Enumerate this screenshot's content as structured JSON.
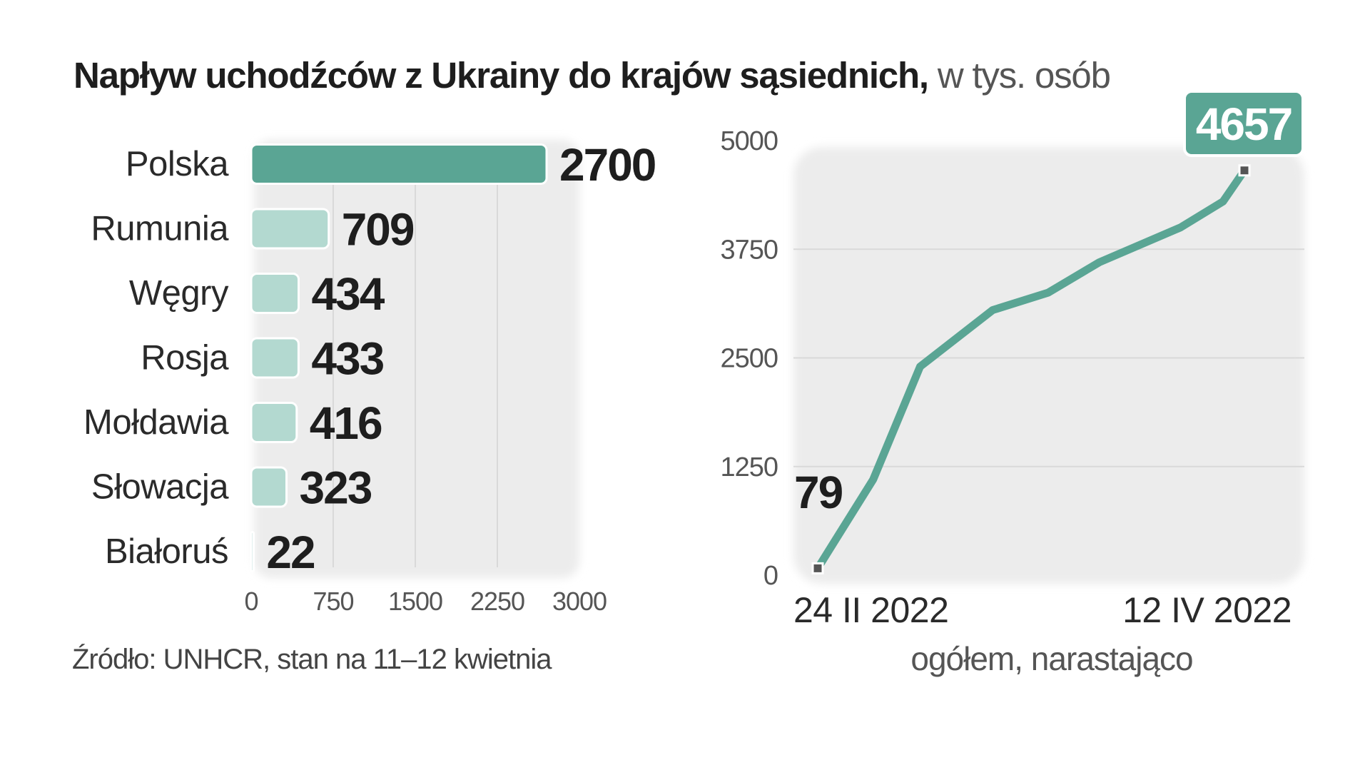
{
  "title": {
    "main": "Napływ uchodźców z Ukrainy do krajów sąsiednich,",
    "unit": " w  tys. osób"
  },
  "source": "Źródło: UNHCR, stan na 11–12 kwietnia",
  "colors": {
    "primary": "#5aa594",
    "secondary": "#b3d9d0",
    "panel": "#ececec"
  },
  "chart_data": [
    {
      "type": "bar",
      "orientation": "horizontal",
      "categories": [
        "Polska",
        "Rumunia",
        "Węgry",
        "Rosja",
        "Mołdawia",
        "Słowacja",
        "Białoruś"
      ],
      "values": [
        2700,
        709,
        434,
        433,
        416,
        323,
        22
      ],
      "value_labels": [
        "2700",
        "709",
        "434",
        "433",
        "416",
        "323",
        "22"
      ],
      "highlight": "Polska",
      "xlim": [
        0,
        3000
      ],
      "x_ticks": [
        0,
        750,
        1500,
        2250,
        3000
      ],
      "x_tick_labels": [
        "0",
        "750",
        "1500",
        "2250",
        "3000"
      ],
      "grid": true
    },
    {
      "type": "line",
      "x_tick_labels": [
        "24 II 2022",
        "12 IV 2022"
      ],
      "x": [
        0,
        0.13,
        0.24,
        0.41,
        0.54,
        0.66,
        0.85,
        0.95,
        1
      ],
      "y": [
        79,
        1100,
        2400,
        3050,
        3250,
        3600,
        4000,
        4300,
        4657
      ],
      "ylim": [
        0,
        5000
      ],
      "y_ticks": [
        0,
        1250,
        2500,
        3750,
        5000
      ],
      "y_tick_labels": [
        "0",
        "1250",
        "2500",
        "3750",
        "5000"
      ],
      "start_label": "79",
      "end_label": "4657",
      "caption": "ogółem, narastająco",
      "grid": true
    }
  ]
}
